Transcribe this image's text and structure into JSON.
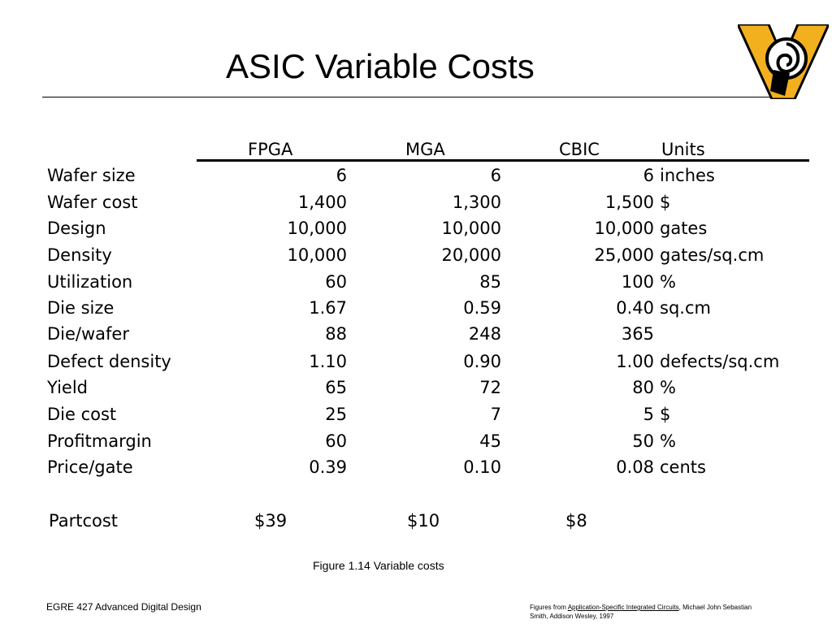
{
  "slide": {
    "title": "ASIC Variable Costs",
    "caption": "Figure 1.14 Variable costs",
    "footer_left": "EGRE 427 Advanced Digital Design",
    "footer_right": {
      "prefix": "Figures from ",
      "book_title": "Application-Specific Integrated Circuits",
      "suffix_line1": ", Michael John Sebastian",
      "suffix_line2": "Smith, Addison Wesley, 1997"
    },
    "logo_colors": {
      "gold": "#F2B01E",
      "black": "#000000"
    }
  },
  "table": {
    "headers": [
      "FPGA",
      "MGA",
      "CBIC",
      "Units"
    ],
    "rows": [
      {
        "label": "Wafer size",
        "fpga": "6",
        "mga": "6",
        "cbic": "6",
        "units": "inches"
      },
      {
        "label": "Wafer cost",
        "fpga": "1,400",
        "mga": "1,300",
        "cbic": "1,500",
        "units": "$"
      },
      {
        "label": "Design",
        "fpga": "10,000",
        "mga": "10,000",
        "cbic": "10,000",
        "units": "gates"
      },
      {
        "label": "Density",
        "fpga": "10,000",
        "mga": "20,000",
        "cbic": "25,000",
        "units": "gates/sq.cm"
      },
      {
        "label": "Utilization",
        "fpga": "60",
        "mga": "85",
        "cbic": "100",
        "units": "%"
      },
      {
        "label": "Die size",
        "fpga": "1.67",
        "mga": "0.59",
        "cbic": "0.40",
        "units": "sq.cm"
      },
      {
        "label": "Die/wafer",
        "fpga": "88",
        "mga": "248",
        "cbic": "365",
        "units": ""
      },
      {
        "label": "Defect density",
        "fpga": "1.10",
        "mga": "0.90",
        "cbic": "1.00",
        "units": "defects/sq.cm"
      },
      {
        "label": "Yield",
        "fpga": "65",
        "mga": "72",
        "cbic": "80",
        "units": "%"
      },
      {
        "label": "Die cost",
        "fpga": "25",
        "mga": "7",
        "cbic": "5",
        "units": "$"
      },
      {
        "label": "Profitmargin",
        "fpga": "60",
        "mga": "45",
        "cbic": "50",
        "units": "%"
      },
      {
        "label": "Price/gate",
        "fpga": "0.39",
        "mga": "0.10",
        "cbic": "0.08",
        "units": "cents"
      }
    ],
    "total": {
      "label": "Partcost",
      "fpga": "$39",
      "mga": "$10",
      "cbic": "$8"
    }
  }
}
